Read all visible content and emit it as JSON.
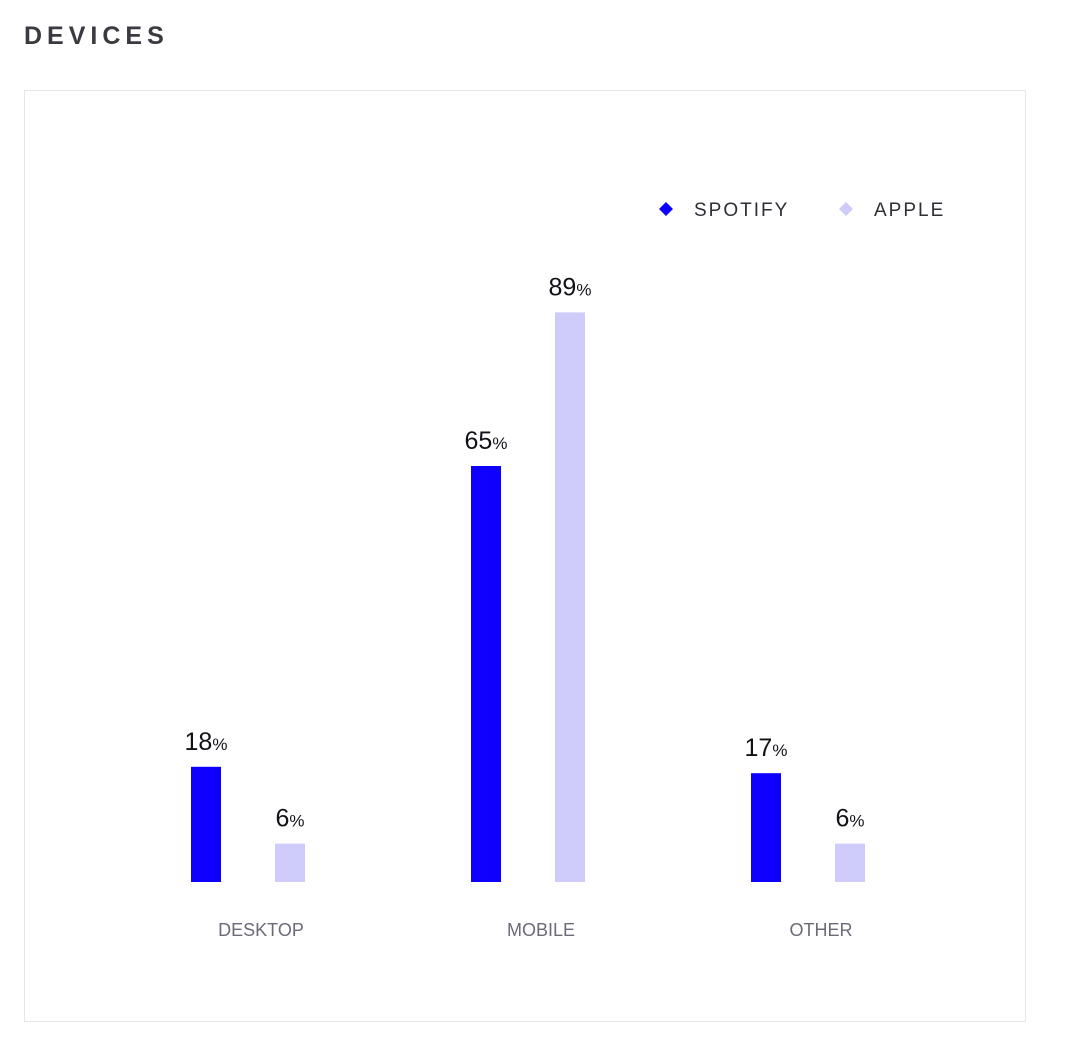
{
  "header": {
    "title": "DEVICES"
  },
  "chart_data": {
    "type": "bar",
    "categories": [
      "DESKTOP",
      "MOBILE",
      "OTHER"
    ],
    "series": [
      {
        "name": "SPOTIFY",
        "color": "#0d00ff",
        "values": [
          18,
          65,
          17
        ]
      },
      {
        "name": "APPLE",
        "color": "#cfcbfb",
        "values": [
          6,
          89,
          6
        ]
      }
    ],
    "value_suffix": "%",
    "ylim": [
      0,
      100
    ],
    "grid": false,
    "legend": "top-right",
    "legend_marker": "diamond"
  }
}
